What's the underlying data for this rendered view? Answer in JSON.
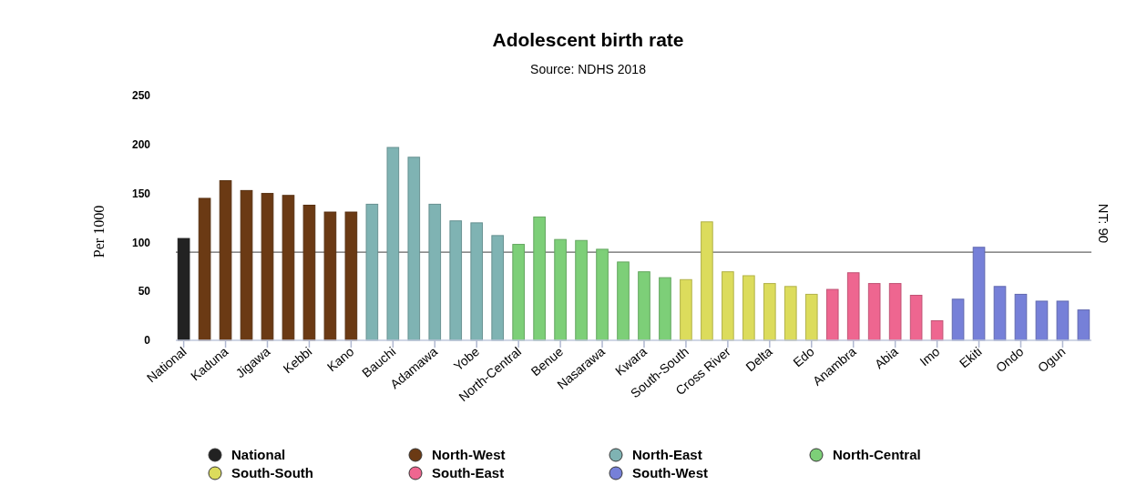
{
  "chart_data": {
    "type": "bar",
    "title": "Adolescent birth rate",
    "subtitle": "Source: NDHS 2018",
    "ylabel": "Per 1000",
    "categories": [
      "National",
      null,
      "Kaduna",
      null,
      "Jigawa",
      null,
      "Kebbi",
      null,
      "Kano",
      null,
      "Bauchi",
      null,
      "Adamawa",
      null,
      "Yobe",
      null,
      "North-Central",
      null,
      "Benue",
      null,
      "Nasarawa",
      null,
      "Kwara",
      null,
      "South-South",
      null,
      "Cross River",
      null,
      "Delta",
      null,
      "Edo",
      null,
      "Anambra",
      null,
      "Abia",
      null,
      "Imo",
      null,
      "Ekiti",
      null,
      "Ondo",
      null,
      "Ogun",
      null
    ],
    "series": [
      {
        "name": "National",
        "color": "#222222",
        "values": [
          104,
          null,
          null,
          null,
          null,
          null,
          null,
          null,
          null,
          null,
          null,
          null,
          null,
          null,
          null,
          null,
          null,
          null,
          null,
          null,
          null,
          null,
          null,
          null,
          null,
          null,
          null,
          null,
          null,
          null,
          null,
          null,
          null,
          null,
          null,
          null,
          null,
          null,
          null,
          null,
          null,
          null,
          null,
          null
        ]
      },
      {
        "name": "North-West",
        "color": "#6b3a14",
        "values": [
          null,
          145,
          163,
          153,
          150,
          148,
          138,
          131,
          131,
          null,
          null,
          null,
          null,
          null,
          null,
          null,
          null,
          null,
          null,
          null,
          null,
          null,
          null,
          null,
          null,
          null,
          null,
          null,
          null,
          null,
          null,
          null,
          null,
          null,
          null,
          null,
          null,
          null,
          null,
          null,
          null,
          null,
          null,
          null
        ]
      },
      {
        "name": "North-East",
        "color": "#7fb3b3",
        "values": [
          null,
          null,
          null,
          null,
          null,
          null,
          null,
          null,
          null,
          139,
          197,
          187,
          139,
          122,
          120,
          107,
          null,
          null,
          null,
          null,
          null,
          null,
          null,
          null,
          null,
          null,
          null,
          null,
          null,
          null,
          null,
          null,
          null,
          null,
          null,
          null,
          null,
          null,
          null,
          null,
          null,
          null,
          null,
          null
        ]
      },
      {
        "name": "North-Central",
        "color": "#7dcf78",
        "values": [
          null,
          null,
          null,
          null,
          null,
          null,
          null,
          null,
          null,
          null,
          null,
          null,
          null,
          null,
          null,
          null,
          98,
          126,
          103,
          102,
          93,
          80,
          70,
          64,
          null,
          null,
          null,
          null,
          null,
          null,
          null,
          null,
          null,
          null,
          null,
          null,
          null,
          null,
          null,
          null,
          null,
          null,
          null,
          null
        ]
      },
      {
        "name": "South-South",
        "color": "#dcdc5c",
        "values": [
          null,
          null,
          null,
          null,
          null,
          null,
          null,
          null,
          null,
          null,
          null,
          null,
          null,
          null,
          null,
          null,
          null,
          null,
          null,
          null,
          null,
          null,
          null,
          null,
          62,
          121,
          70,
          66,
          58,
          55,
          47,
          null,
          null,
          null,
          null,
          null,
          null,
          null,
          null,
          null,
          null,
          null,
          null,
          null
        ]
      },
      {
        "name": "South-East",
        "color": "#ee6690",
        "values": [
          null,
          null,
          null,
          null,
          null,
          null,
          null,
          null,
          null,
          null,
          null,
          null,
          null,
          null,
          null,
          null,
          null,
          null,
          null,
          null,
          null,
          null,
          null,
          null,
          null,
          null,
          null,
          null,
          null,
          null,
          null,
          52,
          69,
          58,
          58,
          46,
          20,
          null,
          null,
          null,
          null,
          null,
          null,
          null
        ]
      },
      {
        "name": "South-West",
        "color": "#7680d8",
        "values": [
          null,
          null,
          null,
          null,
          null,
          null,
          null,
          null,
          null,
          null,
          null,
          null,
          null,
          null,
          null,
          null,
          null,
          null,
          null,
          null,
          null,
          null,
          null,
          null,
          null,
          null,
          null,
          null,
          null,
          null,
          null,
          null,
          null,
          null,
          null,
          null,
          null,
          42,
          95,
          55,
          47,
          40,
          40,
          31
        ]
      }
    ],
    "ylim": [
      0,
      250
    ],
    "yticks": [
      0,
      50,
      100,
      150,
      200,
      250
    ],
    "ref_lines": [
      {
        "axis": "y",
        "value": 90,
        "label": "NT: 90",
        "color": "#666666",
        "line_style": "solid"
      }
    ],
    "legend": "bottom"
  }
}
